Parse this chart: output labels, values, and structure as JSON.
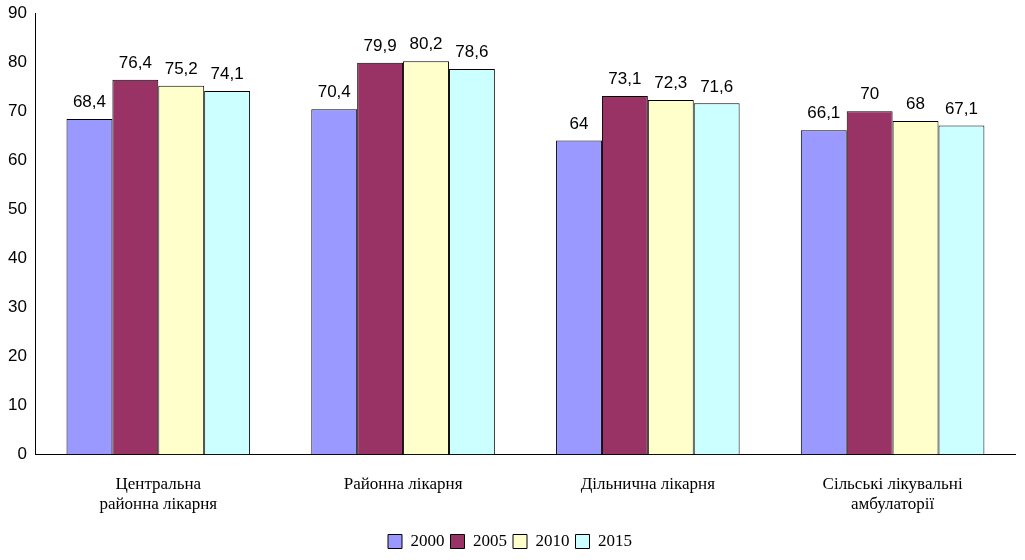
{
  "chart_data": {
    "type": "bar",
    "categories": [
      "Центральна районна лікарня",
      "Районна лікарня",
      "Дільнична лікарня",
      "Сільські лікувальні амбулаторії"
    ],
    "series": [
      {
        "name": "2000",
        "color": "#9999ff",
        "values": [
          68.4,
          70.4,
          64,
          66.1
        ],
        "value_labels": [
          "68,4",
          "70,4",
          "64",
          "66,1"
        ]
      },
      {
        "name": "2005",
        "color": "#993366",
        "values": [
          76.4,
          79.9,
          73.1,
          70
        ],
        "value_labels": [
          "76,4",
          "79,9",
          "73,1",
          "70"
        ]
      },
      {
        "name": "2010",
        "color": "#ffffcc",
        "values": [
          75.2,
          80.2,
          72.3,
          68
        ],
        "value_labels": [
          "75,2",
          "80,2",
          "72,3",
          "68"
        ]
      },
      {
        "name": "2015",
        "color": "#ccffff",
        "values": [
          74.1,
          78.6,
          71.6,
          67.1
        ],
        "value_labels": [
          "74,1",
          "78,6",
          "71,6",
          "67,1"
        ]
      }
    ],
    "ylim": [
      0,
      90
    ],
    "yticks": [
      0,
      10,
      20,
      30,
      40,
      50,
      60,
      70,
      80,
      90
    ],
    "grid": false,
    "legend": "bottom"
  }
}
